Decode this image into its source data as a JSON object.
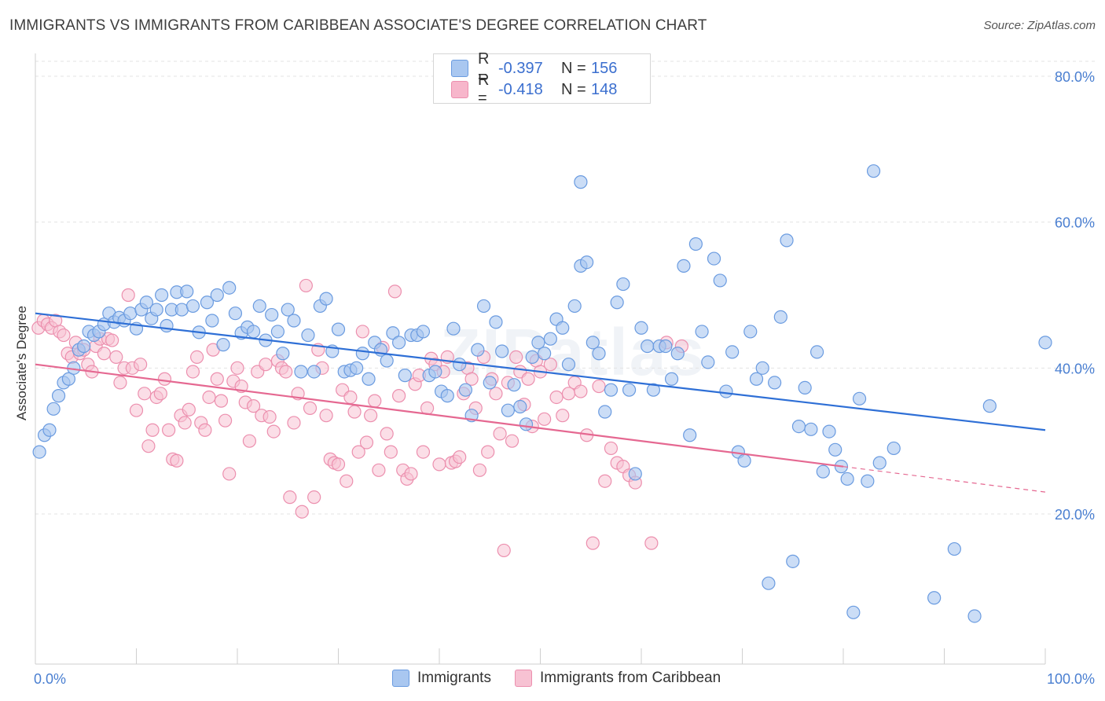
{
  "title": "IMMIGRANTS VS IMMIGRANTS FROM CARIBBEAN ASSOCIATE'S DEGREE CORRELATION CHART",
  "source": "Source: ZipAtlas.com",
  "watermark": "ZIPatlas",
  "legend": {
    "rows": [
      {
        "r_label": "R =",
        "r_value": "-0.397",
        "n_label": "N =",
        "n_value": "156",
        "color": "#a9c7f0"
      },
      {
        "r_label": "R =",
        "r_value": "-0.418",
        "n_label": "N =",
        "n_value": "148",
        "color": "#f7b6cb"
      }
    ]
  },
  "bottom_legend": [
    "Immigrants",
    "Immigrants from Caribbean"
  ],
  "colors": {
    "blue_fill": "#a9c7f0",
    "blue_stroke": "#6a9be0",
    "blue_line": "#2e6fd6",
    "pink_fill": "#f7c2d3",
    "pink_stroke": "#ec8fae",
    "pink_line": "#e56891",
    "grid": "#e3e3e3",
    "tick_text": "#4a7fd1"
  },
  "chart_data": {
    "type": "scatter",
    "title": "IMMIGRANTS VS IMMIGRANTS FROM CARIBBEAN ASSOCIATE'S DEGREE CORRELATION CHART",
    "xlabel": "",
    "ylabel": "Associate's Degree",
    "xlim": [
      0,
      100
    ],
    "ylim": [
      0,
      80
    ],
    "x_tick_labels": [
      "0.0%",
      "100.0%"
    ],
    "y_ticks": [
      20,
      40,
      60,
      80
    ],
    "y_tick_labels": [
      "20.0%",
      "40.0%",
      "60.0%",
      "80.0%"
    ],
    "series": [
      {
        "name": "Immigrants",
        "R": -0.397,
        "N": 156,
        "trend": {
          "x": [
            0,
            100
          ],
          "y": [
            47.5,
            31.5
          ]
        },
        "points": [
          [
            0.4,
            28.5
          ],
          [
            0.9,
            30.8
          ],
          [
            1.4,
            31.5
          ],
          [
            1.8,
            34.4
          ],
          [
            2.3,
            36.2
          ],
          [
            2.8,
            38
          ],
          [
            3.3,
            38.5
          ],
          [
            3.8,
            40
          ],
          [
            4.3,
            42.5
          ],
          [
            4.8,
            43
          ],
          [
            5.3,
            45
          ],
          [
            5.8,
            44.5
          ],
          [
            6.3,
            45
          ],
          [
            6.8,
            46
          ],
          [
            7.3,
            47.5
          ],
          [
            7.8,
            46.3
          ],
          [
            8.3,
            46.9
          ],
          [
            8.8,
            46.5
          ],
          [
            9.4,
            47.5
          ],
          [
            10,
            45.4
          ],
          [
            10.5,
            48
          ],
          [
            11,
            49
          ],
          [
            11.5,
            46.8
          ],
          [
            12,
            48
          ],
          [
            12.5,
            50
          ],
          [
            13,
            45.8
          ],
          [
            13.5,
            48
          ],
          [
            14,
            50.4
          ],
          [
            14.5,
            48
          ],
          [
            15,
            50.5
          ],
          [
            15.6,
            48.5
          ],
          [
            16.2,
            44.9
          ],
          [
            17,
            49
          ],
          [
            17.5,
            46.5
          ],
          [
            18,
            50
          ],
          [
            18.6,
            43.2
          ],
          [
            19.2,
            51
          ],
          [
            19.8,
            47.5
          ],
          [
            20.4,
            44.8
          ],
          [
            21,
            45.6
          ],
          [
            21.6,
            45
          ],
          [
            22.2,
            48.5
          ],
          [
            22.8,
            43.8
          ],
          [
            23.4,
            47.3
          ],
          [
            24,
            45
          ],
          [
            24.5,
            42
          ],
          [
            25,
            48
          ],
          [
            25.6,
            46.5
          ],
          [
            26.3,
            39.5
          ],
          [
            27,
            44.5
          ],
          [
            27.6,
            39.5
          ],
          [
            28.2,
            48.5
          ],
          [
            28.8,
            49.5
          ],
          [
            29.4,
            42.3
          ],
          [
            30,
            45.3
          ],
          [
            30.6,
            39.5
          ],
          [
            31.2,
            39.7
          ],
          [
            31.8,
            40
          ],
          [
            32.4,
            42
          ],
          [
            33,
            38.5
          ],
          [
            33.6,
            43.5
          ],
          [
            34.2,
            42.5
          ],
          [
            34.8,
            41
          ],
          [
            35.4,
            44.8
          ],
          [
            36,
            43.5
          ],
          [
            36.6,
            39
          ],
          [
            37.2,
            44.5
          ],
          [
            37.8,
            44.5
          ],
          [
            38.4,
            45
          ],
          [
            39,
            39
          ],
          [
            39.6,
            39.5
          ],
          [
            40.2,
            36.8
          ],
          [
            40.8,
            36.2
          ],
          [
            41.4,
            45.4
          ],
          [
            42,
            40.5
          ],
          [
            42.6,
            37
          ],
          [
            43.2,
            33.5
          ],
          [
            43.8,
            42.5
          ],
          [
            44.4,
            48.5
          ],
          [
            45,
            38
          ],
          [
            45.6,
            46.3
          ],
          [
            46.2,
            42.3
          ],
          [
            46.8,
            34.2
          ],
          [
            47.4,
            37.7
          ],
          [
            48,
            34.7
          ],
          [
            48.6,
            32.3
          ],
          [
            49.2,
            41.5
          ],
          [
            49.8,
            43.5
          ],
          [
            50.4,
            42
          ],
          [
            51,
            44
          ],
          [
            51.6,
            46.7
          ],
          [
            52.2,
            45.5
          ],
          [
            52.8,
            40.5
          ],
          [
            53.4,
            48.5
          ],
          [
            54,
            54
          ],
          [
            54.6,
            54.5
          ],
          [
            55.2,
            43.5
          ],
          [
            55.8,
            42
          ],
          [
            56.4,
            34
          ],
          [
            57,
            37
          ],
          [
            57.6,
            49
          ],
          [
            58.2,
            51.5
          ],
          [
            58.8,
            37
          ],
          [
            59.4,
            25.5
          ],
          [
            60,
            45.5
          ],
          [
            60.6,
            43
          ],
          [
            61.2,
            37
          ],
          [
            61.8,
            43
          ],
          [
            62.4,
            43
          ],
          [
            63,
            38.5
          ],
          [
            63.6,
            42
          ],
          [
            64.2,
            54
          ],
          [
            64.8,
            30.8
          ],
          [
            65.4,
            57
          ],
          [
            66,
            45
          ],
          [
            66.6,
            40.8
          ],
          [
            67.2,
            55
          ],
          [
            67.8,
            52
          ],
          [
            68.4,
            36.8
          ],
          [
            69,
            42.2
          ],
          [
            69.6,
            28.5
          ],
          [
            70.2,
            27.3
          ],
          [
            70.8,
            45
          ],
          [
            71.4,
            38.5
          ],
          [
            72,
            40
          ],
          [
            72.6,
            10.5
          ],
          [
            73.2,
            38
          ],
          [
            73.8,
            47
          ],
          [
            74.4,
            57.5
          ],
          [
            75,
            13.5
          ],
          [
            75.6,
            32
          ],
          [
            76.2,
            37.3
          ],
          [
            76.8,
            31.6
          ],
          [
            77.4,
            42.2
          ],
          [
            78,
            25.8
          ],
          [
            78.6,
            31.3
          ],
          [
            79.2,
            28.8
          ],
          [
            79.8,
            26.5
          ],
          [
            80.4,
            24.8
          ],
          [
            81,
            6.5
          ],
          [
            81.6,
            35.8
          ],
          [
            82.4,
            24.5
          ],
          [
            83,
            67
          ],
          [
            83.6,
            27
          ],
          [
            85,
            29
          ],
          [
            89,
            8.5
          ],
          [
            91,
            15.2
          ],
          [
            93,
            6
          ],
          [
            94.5,
            34.8
          ],
          [
            100,
            43.5
          ],
          [
            54,
            65.5
          ]
        ]
      },
      {
        "name": "Immigrants from Caribbean",
        "R": -0.418,
        "N": 148,
        "trend": {
          "x": [
            0,
            80
          ],
          "y": [
            40.5,
            26.5
          ],
          "dashed_to": {
            "x": 100,
            "y": 23
          }
        },
        "points": [
          [
            0.3,
            45.5
          ],
          [
            0.8,
            46.5
          ],
          [
            1.2,
            46
          ],
          [
            1.6,
            45.5
          ],
          [
            2,
            46.5
          ],
          [
            2.4,
            45
          ],
          [
            2.8,
            44.5
          ],
          [
            3.2,
            42
          ],
          [
            3.6,
            41.5
          ],
          [
            4,
            43.5
          ],
          [
            4.4,
            42
          ],
          [
            4.8,
            42.5
          ],
          [
            5.2,
            40.5
          ],
          [
            5.6,
            39.5
          ],
          [
            6,
            43
          ],
          [
            6.4,
            44
          ],
          [
            6.8,
            42
          ],
          [
            7.2,
            44
          ],
          [
            7.6,
            43.8
          ],
          [
            8,
            41.5
          ],
          [
            8.4,
            38
          ],
          [
            8.8,
            40
          ],
          [
            9.2,
            50
          ],
          [
            9.6,
            40
          ],
          [
            10,
            34.2
          ],
          [
            10.4,
            40.5
          ],
          [
            10.8,
            36.5
          ],
          [
            11.2,
            29.3
          ],
          [
            11.6,
            31.5
          ],
          [
            12,
            36
          ],
          [
            12.4,
            36.5
          ],
          [
            12.8,
            38.5
          ],
          [
            13.2,
            31.5
          ],
          [
            13.6,
            27.5
          ],
          [
            14,
            27.3
          ],
          [
            14.4,
            33.5
          ],
          [
            14.8,
            32.5
          ],
          [
            15.2,
            34.3
          ],
          [
            15.6,
            39.5
          ],
          [
            16,
            41.5
          ],
          [
            16.4,
            32.5
          ],
          [
            16.8,
            31.5
          ],
          [
            17.2,
            36
          ],
          [
            17.6,
            42.5
          ],
          [
            18,
            38.5
          ],
          [
            18.4,
            35.5
          ],
          [
            18.8,
            32.8
          ],
          [
            19.2,
            25.5
          ],
          [
            19.6,
            38.2
          ],
          [
            20,
            40
          ],
          [
            20.4,
            37.5
          ],
          [
            20.8,
            35.3
          ],
          [
            21.2,
            30
          ],
          [
            21.6,
            34.8
          ],
          [
            22,
            39.5
          ],
          [
            22.4,
            33.5
          ],
          [
            22.8,
            40.5
          ],
          [
            23.2,
            33.3
          ],
          [
            23.6,
            31.3
          ],
          [
            24,
            41
          ],
          [
            24.4,
            40
          ],
          [
            24.8,
            39.5
          ],
          [
            25.2,
            22.3
          ],
          [
            25.6,
            32.5
          ],
          [
            26,
            36.5
          ],
          [
            26.4,
            20.3
          ],
          [
            26.8,
            51.3
          ],
          [
            27.2,
            34.5
          ],
          [
            27.6,
            22.3
          ],
          [
            28,
            42.5
          ],
          [
            28.4,
            40
          ],
          [
            28.8,
            33.5
          ],
          [
            29.2,
            27.5
          ],
          [
            29.6,
            27
          ],
          [
            30,
            26.8
          ],
          [
            30.4,
            37
          ],
          [
            30.8,
            24.5
          ],
          [
            31.2,
            36
          ],
          [
            31.6,
            34
          ],
          [
            32,
            28.5
          ],
          [
            32.4,
            45
          ],
          [
            32.8,
            29.8
          ],
          [
            33.2,
            33.5
          ],
          [
            33.6,
            35.5
          ],
          [
            34,
            26
          ],
          [
            34.4,
            42.8
          ],
          [
            34.8,
            31
          ],
          [
            35.2,
            28.5
          ],
          [
            35.6,
            50.5
          ],
          [
            36,
            36.2
          ],
          [
            36.4,
            26
          ],
          [
            36.8,
            24.8
          ],
          [
            37.2,
            25.5
          ],
          [
            37.6,
            37.8
          ],
          [
            38,
            39
          ],
          [
            38.4,
            28.5
          ],
          [
            38.8,
            34.5
          ],
          [
            39.2,
            41.3
          ],
          [
            39.6,
            40.5
          ],
          [
            40,
            26.8
          ],
          [
            40.4,
            39.5
          ],
          [
            40.8,
            41.5
          ],
          [
            41.2,
            27
          ],
          [
            41.6,
            27.2
          ],
          [
            42,
            27.8
          ],
          [
            42.4,
            36.5
          ],
          [
            42.8,
            40
          ],
          [
            43.2,
            38.5
          ],
          [
            43.6,
            34.5
          ],
          [
            44,
            26
          ],
          [
            44.4,
            41.5
          ],
          [
            44.8,
            28.5
          ],
          [
            45.2,
            38.5
          ],
          [
            45.6,
            36.5
          ],
          [
            46,
            31
          ],
          [
            46.4,
            15
          ],
          [
            46.8,
            38
          ],
          [
            47.2,
            30
          ],
          [
            47.6,
            41.5
          ],
          [
            48,
            39.5
          ],
          [
            48.4,
            35
          ],
          [
            48.8,
            38.5
          ],
          [
            49.2,
            32
          ],
          [
            49.6,
            41
          ],
          [
            50,
            39.5
          ],
          [
            50.4,
            33
          ],
          [
            51,
            40.5
          ],
          [
            51.6,
            36
          ],
          [
            52.2,
            33.5
          ],
          [
            52.8,
            36.5
          ],
          [
            53.4,
            38
          ],
          [
            54,
            36.8
          ],
          [
            54.6,
            30.8
          ],
          [
            55.2,
            16
          ],
          [
            55.8,
            37.5
          ],
          [
            56.4,
            24.5
          ],
          [
            57,
            29
          ],
          [
            57.6,
            27
          ],
          [
            58.2,
            26.5
          ],
          [
            58.8,
            25.3
          ],
          [
            59.4,
            24.3
          ],
          [
            61,
            16
          ],
          [
            62.5,
            43.5
          ],
          [
            64,
            43
          ]
        ]
      }
    ]
  }
}
